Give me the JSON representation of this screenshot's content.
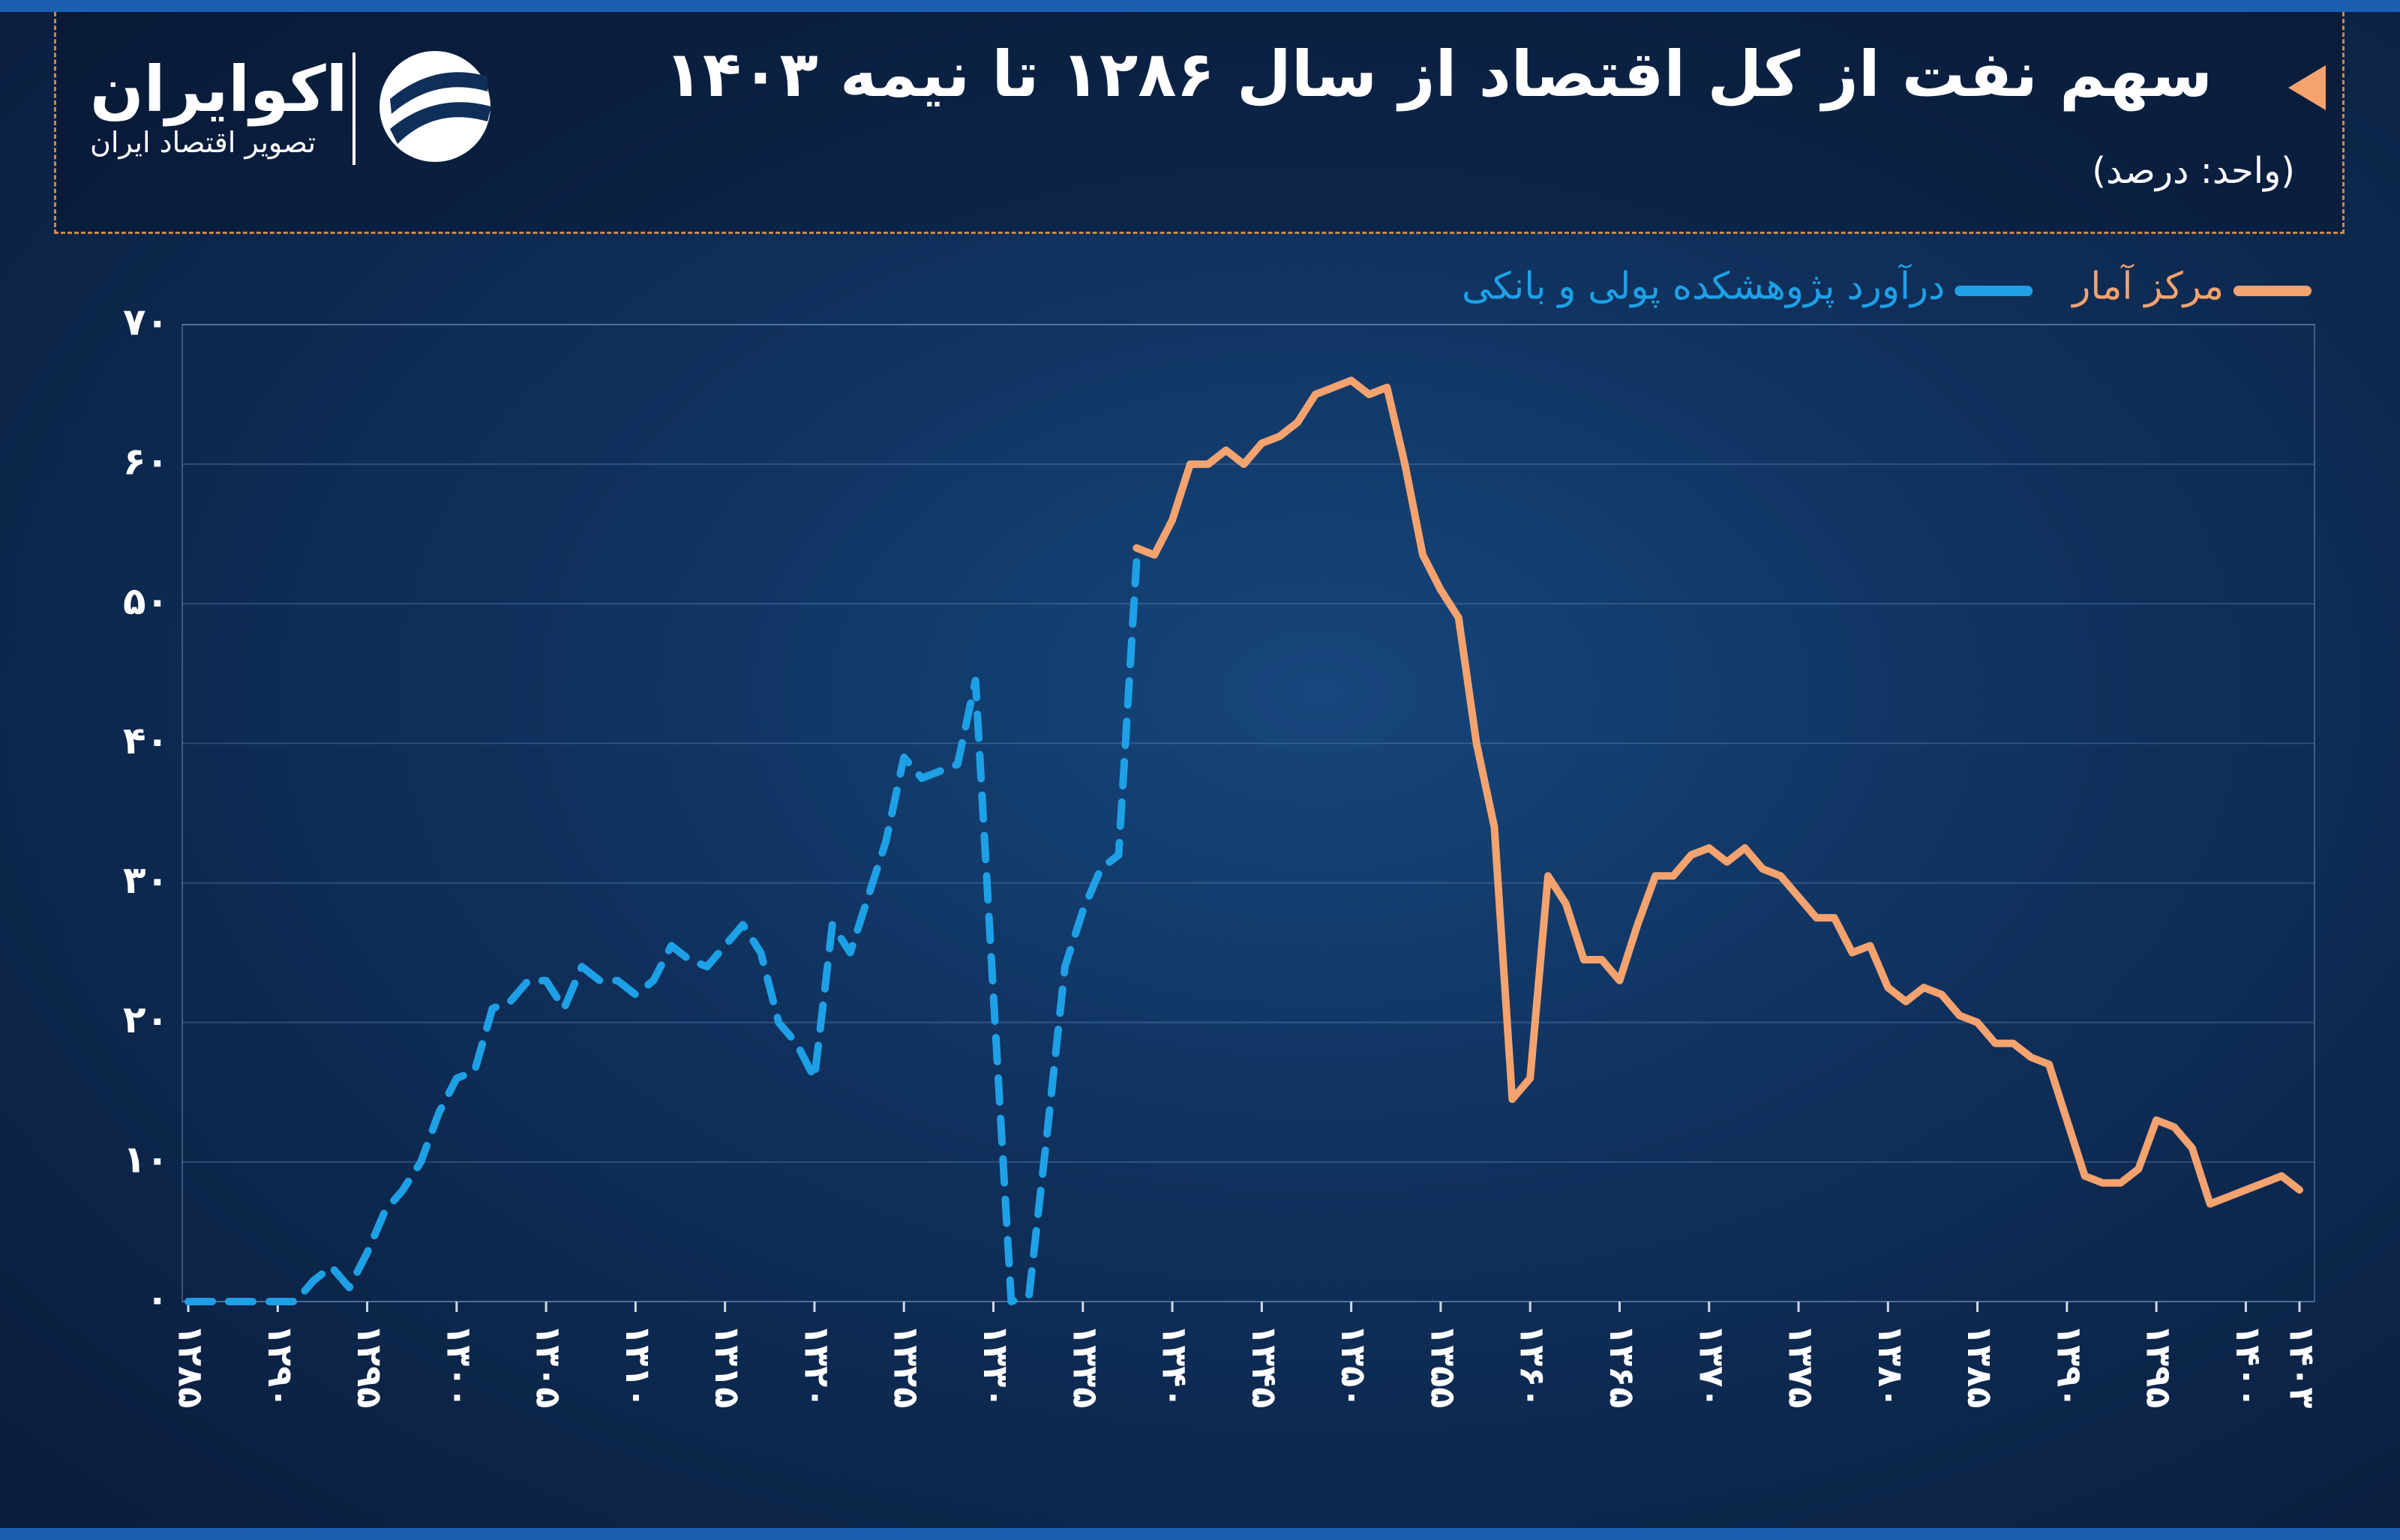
{
  "header": {
    "title": "سهم نفت از کل اقتصاد از سال ۱۲۸۶ تا نیمه ۱۴۰۳",
    "subtitle": "(واحد: درصد)",
    "logo_name": "اکوایران",
    "logo_tagline": "تصویر اقتصاد ایران"
  },
  "chart_data": {
    "type": "line",
    "x": [
      1285,
      1286,
      1287,
      1288,
      1289,
      1290,
      1291,
      1292,
      1293,
      1294,
      1295,
      1296,
      1297,
      1298,
      1299,
      1300,
      1301,
      1302,
      1303,
      1304,
      1305,
      1306,
      1307,
      1308,
      1309,
      1310,
      1311,
      1312,
      1313,
      1314,
      1315,
      1316,
      1317,
      1318,
      1319,
      1320,
      1321,
      1322,
      1323,
      1324,
      1325,
      1326,
      1327,
      1328,
      1329,
      1330,
      1331,
      1332,
      1333,
      1334,
      1335,
      1336,
      1337,
      1338,
      1339,
      1340,
      1341,
      1342,
      1343,
      1344,
      1345,
      1346,
      1347,
      1348,
      1349,
      1350,
      1351,
      1352,
      1353,
      1354,
      1355,
      1356,
      1357,
      1358,
      1359,
      1360,
      1361,
      1362,
      1363,
      1364,
      1365,
      1366,
      1367,
      1368,
      1369,
      1370,
      1371,
      1372,
      1373,
      1374,
      1375,
      1376,
      1377,
      1378,
      1379,
      1380,
      1381,
      1382,
      1383,
      1384,
      1385,
      1386,
      1387,
      1388,
      1389,
      1390,
      1391,
      1392,
      1393,
      1394,
      1395,
      1396,
      1397,
      1398,
      1399,
      1400,
      1401,
      1402,
      1403
    ],
    "series": [
      {
        "name": "درآورد پژوهشکده پولی و بانکی",
        "color": "#1ea0e6",
        "dashed": true,
        "values": [
          0,
          0,
          0,
          0,
          0,
          0,
          0,
          1.5,
          2.5,
          1,
          3.5,
          6.5,
          8,
          10,
          13.5,
          16,
          16.5,
          21,
          21.5,
          23,
          23,
          21,
          24,
          23,
          23,
          22,
          23,
          25.5,
          24.5,
          24,
          25.5,
          27,
          25,
          20,
          18.5,
          16,
          27,
          25,
          29,
          33,
          39,
          37.5,
          38,
          38.5,
          44.5,
          22,
          0,
          0.5,
          12,
          24,
          28,
          31,
          32,
          53,
          null,
          null,
          null,
          null,
          null,
          null,
          null,
          null,
          null,
          null,
          null,
          null,
          null,
          null,
          null,
          null,
          null,
          null,
          null,
          null,
          null,
          null,
          null,
          null,
          null,
          null,
          null,
          null,
          null,
          null,
          null,
          null,
          null,
          null,
          null,
          null,
          null,
          null,
          null,
          null,
          null,
          null,
          null,
          null,
          null,
          null,
          null,
          null,
          null,
          null,
          null,
          null,
          null,
          null,
          null,
          null,
          null,
          null,
          null,
          null,
          null,
          null,
          null,
          null,
          null
        ]
      },
      {
        "name": "مرکز آمار",
        "color": "#f4a36f",
        "dashed": false,
        "values": [
          null,
          null,
          null,
          null,
          null,
          null,
          null,
          null,
          null,
          null,
          null,
          null,
          null,
          null,
          null,
          null,
          null,
          null,
          null,
          null,
          null,
          null,
          null,
          null,
          null,
          null,
          null,
          null,
          null,
          null,
          null,
          null,
          null,
          null,
          null,
          null,
          null,
          null,
          null,
          null,
          null,
          null,
          null,
          null,
          null,
          null,
          null,
          null,
          null,
          null,
          null,
          null,
          null,
          54,
          53.5,
          56,
          60,
          60,
          61,
          60,
          61.5,
          62,
          63,
          65,
          65.5,
          66,
          65,
          65.5,
          60,
          53.5,
          51,
          49,
          40,
          34,
          14.5,
          16,
          30.5,
          28.5,
          24.5,
          24.5,
          23,
          27,
          30.5,
          30.5,
          32,
          32.5,
          31.5,
          32.5,
          31,
          30.5,
          29,
          27.5,
          27.5,
          25,
          25.5,
          22.5,
          21.5,
          22.5,
          22,
          20.5,
          20,
          18.5,
          18.5,
          17.5,
          17,
          13,
          9,
          8.5,
          8.5,
          9.5,
          13,
          12.5,
          11,
          7,
          7.5,
          8,
          8.5,
          9,
          8
        ]
      }
    ],
    "xlim": [
      1285,
      1403
    ],
    "xticks": [
      {
        "value": 1285,
        "label": "۱۲۸۵"
      },
      {
        "value": 1290,
        "label": "۱۲۹۰"
      },
      {
        "value": 1295,
        "label": "۱۲۹۵"
      },
      {
        "value": 1300,
        "label": "۱۳۰۰"
      },
      {
        "value": 1305,
        "label": "۱۳۰۵"
      },
      {
        "value": 1310,
        "label": "۱۳۱۰"
      },
      {
        "value": 1315,
        "label": "۱۳۱۵"
      },
      {
        "value": 1320,
        "label": "۱۳۲۰"
      },
      {
        "value": 1325,
        "label": "۱۳۲۵"
      },
      {
        "value": 1330,
        "label": "۱۳۳۰"
      },
      {
        "value": 1335,
        "label": "۱۳۳۵"
      },
      {
        "value": 1340,
        "label": "۱۳۴۰"
      },
      {
        "value": 1345,
        "label": "۱۳۴۵"
      },
      {
        "value": 1350,
        "label": "۱۳۵۰"
      },
      {
        "value": 1355,
        "label": "۱۳۵۵"
      },
      {
        "value": 1360,
        "label": "۱۳۶۰"
      },
      {
        "value": 1365,
        "label": "۱۳۶۵"
      },
      {
        "value": 1370,
        "label": "۱۳۷۰"
      },
      {
        "value": 1375,
        "label": "۱۳۷۵"
      },
      {
        "value": 1380,
        "label": "۱۳۸۰"
      },
      {
        "value": 1385,
        "label": "۱۳۸۵"
      },
      {
        "value": 1390,
        "label": "۱۳۹۰"
      },
      {
        "value": 1395,
        "label": "۱۳۹۵"
      },
      {
        "value": 1400,
        "label": "۱۴۰۰"
      },
      {
        "value": 1403,
        "label": "۱۴۰۳"
      }
    ],
    "ylim": [
      0,
      70
    ],
    "yticks": [
      {
        "value": 0,
        "label": "۰"
      },
      {
        "value": 10,
        "label": "۱۰"
      },
      {
        "value": 20,
        "label": "۲۰"
      },
      {
        "value": 30,
        "label": "۳۰"
      },
      {
        "value": 40,
        "label": "۴۰"
      },
      {
        "value": 50,
        "label": "۵۰"
      },
      {
        "value": 60,
        "label": "۶۰"
      },
      {
        "value": 70,
        "label": "۷۰"
      }
    ],
    "grid": true,
    "legend": "top-right"
  }
}
